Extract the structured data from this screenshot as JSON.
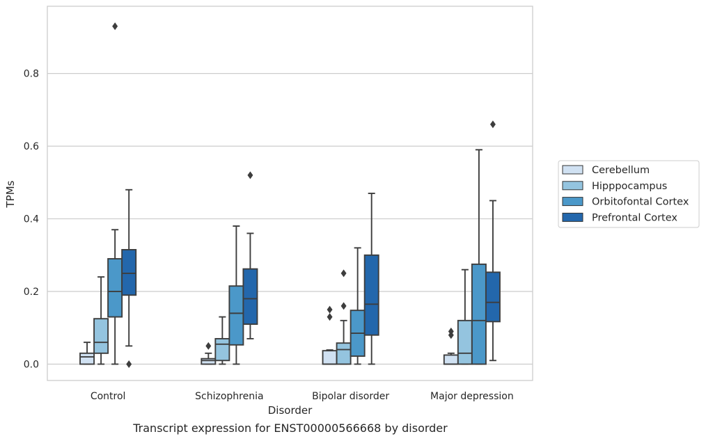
{
  "caption": "Transcript expression for ENST00000566668 by disorder",
  "chart_data": {
    "type": "box",
    "xlabel": "Disorder",
    "ylabel": "TPMs",
    "ylim": [
      -0.045,
      0.985
    ],
    "yticks": [
      0.0,
      0.2,
      0.4,
      0.6,
      0.8
    ],
    "ytick_labels": [
      "0.0",
      "0.2",
      "0.4",
      "0.6",
      "0.8"
    ],
    "grid": "horizontal",
    "legend_position": "right",
    "categories": [
      "Control",
      "Schizophrenia",
      "Bipolar disorder",
      "Major depression"
    ],
    "series": [
      {
        "name": "Cerebellum",
        "color": "#d0e1f2",
        "boxes": [
          {
            "whislo": 0.0,
            "q1": 0.0,
            "med": 0.02,
            "q3": 0.03,
            "whishi": 0.06,
            "fliers": []
          },
          {
            "whislo": 0.0,
            "q1": 0.0,
            "med": 0.01,
            "q3": 0.015,
            "whishi": 0.03,
            "fliers": [
              0.05
            ]
          },
          {
            "whislo": 0.0,
            "q1": 0.0,
            "med": 0.0,
            "q3": 0.037,
            "whishi": 0.039,
            "fliers": [
              0.13,
              0.15
            ]
          },
          {
            "whislo": 0.0,
            "q1": 0.0,
            "med": 0.0,
            "q3": 0.025,
            "whishi": 0.03,
            "fliers": [
              0.08,
              0.09
            ]
          }
        ]
      },
      {
        "name": "Hipppocampus",
        "color": "#94c4df",
        "boxes": [
          {
            "whislo": 0.0,
            "q1": 0.03,
            "med": 0.06,
            "q3": 0.125,
            "whishi": 0.24,
            "fliers": []
          },
          {
            "whislo": 0.0,
            "q1": 0.01,
            "med": 0.055,
            "q3": 0.07,
            "whishi": 0.13,
            "fliers": []
          },
          {
            "whislo": 0.0,
            "q1": 0.0,
            "med": 0.04,
            "q3": 0.058,
            "whishi": 0.12,
            "fliers": [
              0.16,
              0.25
            ]
          },
          {
            "whislo": 0.0,
            "q1": 0.0,
            "med": 0.03,
            "q3": 0.12,
            "whishi": 0.26,
            "fliers": []
          }
        ]
      },
      {
        "name": "Orbitofontal Cortex",
        "color": "#4b98c9",
        "boxes": [
          {
            "whislo": 0.0,
            "q1": 0.13,
            "med": 0.2,
            "q3": 0.29,
            "whishi": 0.37,
            "fliers": [
              0.93
            ]
          },
          {
            "whislo": 0.0,
            "q1": 0.053,
            "med": 0.14,
            "q3": 0.215,
            "whishi": 0.38,
            "fliers": []
          },
          {
            "whislo": 0.0,
            "q1": 0.022,
            "med": 0.085,
            "q3": 0.148,
            "whishi": 0.32,
            "fliers": []
          },
          {
            "whislo": 0.0,
            "q1": 0.0,
            "med": 0.12,
            "q3": 0.275,
            "whishi": 0.59,
            "fliers": []
          }
        ]
      },
      {
        "name": "Prefrontal Cortex",
        "color": "#2367ac",
        "boxes": [
          {
            "whislo": 0.05,
            "q1": 0.19,
            "med": 0.25,
            "q3": 0.315,
            "whishi": 0.48,
            "fliers": [
              0.0
            ]
          },
          {
            "whislo": 0.07,
            "q1": 0.11,
            "med": 0.18,
            "q3": 0.262,
            "whishi": 0.36,
            "fliers": [
              0.52
            ]
          },
          {
            "whislo": 0.0,
            "q1": 0.08,
            "med": 0.165,
            "q3": 0.3,
            "whishi": 0.47,
            "fliers": []
          },
          {
            "whislo": 0.01,
            "q1": 0.117,
            "med": 0.17,
            "q3": 0.253,
            "whishi": 0.45,
            "fliers": [
              0.66
            ]
          }
        ]
      }
    ]
  }
}
